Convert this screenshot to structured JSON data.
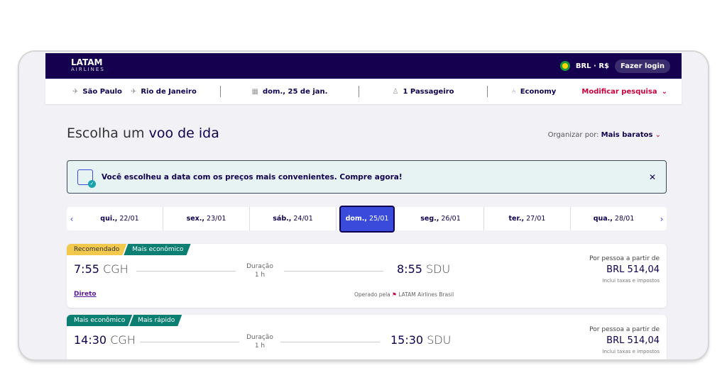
{
  "header": {
    "logo": "LATAM",
    "logo_sub": "AIRLINES",
    "currency": "BRL · R$",
    "login": "Fazer login"
  },
  "search": {
    "origin": "São Paulo",
    "destination": "Rio de Janeiro",
    "date": "dom., 25 de jan.",
    "passengers": "1 Passageiro",
    "cabin": "Economy",
    "modify": "Modificar pesquisa"
  },
  "page": {
    "title_a": "Escolha um ",
    "title_b": "voo de ida",
    "sort_label": "Organizar por: ",
    "sort_value": "Mais baratos"
  },
  "banner": {
    "text": "Você escolheu a data com os preços mais convenientes. Compre agora!"
  },
  "dates": [
    {
      "day": "qui.,",
      "date": " 22/01"
    },
    {
      "day": "sex.,",
      "date": " 23/01"
    },
    {
      "day": "sáb.,",
      "date": " 24/01"
    },
    {
      "day": "dom.,",
      "date": " 25/01",
      "selected": true
    },
    {
      "day": "seg.,",
      "date": " 26/01"
    },
    {
      "day": "ter.,",
      "date": " 27/01"
    },
    {
      "day": "qua.,",
      "date": " 28/01"
    }
  ],
  "flights": [
    {
      "tags": [
        "Recomendado",
        "Mais econômico"
      ],
      "dep": "7:55",
      "dep_ap": " CGH",
      "arr": "8:55",
      "arr_ap": " SDU",
      "dur_label": "Duração",
      "dur": "1 h",
      "price_label": "Por pessoa a partir de",
      "price": "BRL 514,04",
      "taxes": "Inclui taxas e impostos",
      "stops": "Direto",
      "operated": "Operado pela",
      "airline": "LATAM Airlines Brasil"
    },
    {
      "tags": [
        "Mais econômico",
        "Mais rápido"
      ],
      "dep": "14:30",
      "dep_ap": " CGH",
      "arr": "15:30",
      "arr_ap": " SDU",
      "dur_label": "Duração",
      "dur": "1 h",
      "price_label": "Por pessoa a partir de",
      "price": "BRL 514,04",
      "taxes": "Inclui taxas e impostos"
    }
  ],
  "colors": {
    "header": "#15004f",
    "accent": "#3a4bdc",
    "modify": "#c8003c",
    "tag_green": "#0a7f72",
    "tag_yellow": "#f2c94c"
  }
}
